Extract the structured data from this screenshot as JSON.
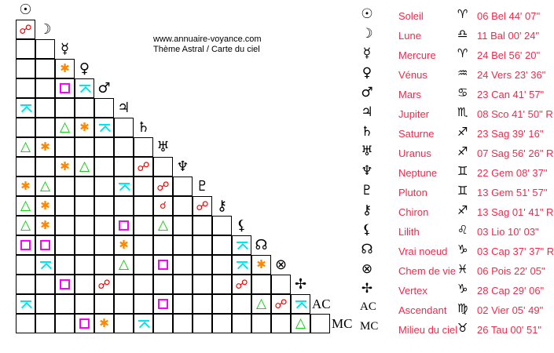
{
  "header": {
    "site": "www.annuaire-voyance.com",
    "subtitle": "Thème Astral / Carte du ciel"
  },
  "colors": {
    "opposition": "#ff0000",
    "conjunction": "#ff0000",
    "sextile": "#ff8800",
    "square": "#ff00ff",
    "quincunx": "#00e5ee",
    "trine": "#00cc00",
    "text": "#ee2a4a"
  },
  "aspect_glyphs": {
    "opposition": "☍",
    "conjunction": "☌",
    "sextile": "✱",
    "trine": "△"
  },
  "bodies": [
    {
      "glyph": "☉",
      "name": "Soleil",
      "sign": "♈",
      "position": "06 Bel 44' 07\""
    },
    {
      "glyph": "☽",
      "name": "Lune",
      "sign": "♎",
      "position": "11 Bal 00' 24\""
    },
    {
      "glyph": "☿",
      "name": "Mercure",
      "sign": "♈",
      "position": "24 Bel 56' 20\""
    },
    {
      "glyph": "♀",
      "name": "Vénus",
      "sign": "♒",
      "position": "24 Vers 23' 36\""
    },
    {
      "glyph": "♂",
      "name": "Mars",
      "sign": "♋",
      "position": "23 Can 41' 57\""
    },
    {
      "glyph": "♃",
      "name": "Jupiter",
      "sign": "♏",
      "position": "08 Sco 41' 50\" R"
    },
    {
      "glyph": "♄",
      "name": "Saturne",
      "sign": "♐",
      "position": "23 Sag 39' 16\""
    },
    {
      "glyph": "♅",
      "name": "Uranus",
      "sign": "♐",
      "position": "07 Sag 56' 26\" R"
    },
    {
      "glyph": "♆",
      "name": "Neptune",
      "sign": "♊",
      "position": "22 Gem 08' 37\""
    },
    {
      "glyph": "♇",
      "name": "Pluton",
      "sign": "♊",
      "position": "13 Gem 51' 57\""
    },
    {
      "glyph": "⚷",
      "name": "Chiron",
      "sign": "♐",
      "position": "13 Sag 01' 41\" R"
    },
    {
      "glyph": "⚸",
      "name": "Lilith",
      "sign": "♌",
      "position": "03 Lio 10' 03\""
    },
    {
      "glyph": "☊",
      "name": "Vrai noeud",
      "sign": "♑",
      "position": "03 Cap 37' 37\" R"
    },
    {
      "glyph": "⊗",
      "name": "Chem de vie",
      "sign": "♓",
      "position": "06 Pois 22' 05\""
    },
    {
      "glyph": "✢",
      "name": "Vertex",
      "sign": "♑",
      "position": "28 Cap 29' 06\""
    },
    {
      "glyph": "AC",
      "name": "Ascendant",
      "sign": "♍",
      "position": "02 Vier 05' 49\""
    },
    {
      "glyph": "MC",
      "name": "Milieu du ciel",
      "sign": "♉",
      "position": "26 Tau 00' 51\""
    }
  ],
  "aspects": [
    {
      "a": "Lune",
      "b": "Soleil",
      "type": "opposition"
    },
    {
      "a": "Vénus",
      "b": "Mercure",
      "type": "sextile"
    },
    {
      "a": "Mars",
      "b": "Mercure",
      "type": "square"
    },
    {
      "a": "Mars",
      "b": "Vénus",
      "type": "quincunx"
    },
    {
      "a": "Jupiter",
      "b": "Soleil",
      "type": "quincunx"
    },
    {
      "a": "Saturne",
      "b": "Mercure",
      "type": "trine"
    },
    {
      "a": "Saturne",
      "b": "Vénus",
      "type": "sextile"
    },
    {
      "a": "Saturne",
      "b": "Mars",
      "type": "quincunx"
    },
    {
      "a": "Uranus",
      "b": "Soleil",
      "type": "trine"
    },
    {
      "a": "Uranus",
      "b": "Lune",
      "type": "sextile"
    },
    {
      "a": "Neptune",
      "b": "Mercure",
      "type": "sextile"
    },
    {
      "a": "Neptune",
      "b": "Vénus",
      "type": "trine"
    },
    {
      "a": "Neptune",
      "b": "Saturne",
      "type": "opposition"
    },
    {
      "a": "Pluton",
      "b": "Soleil",
      "type": "sextile"
    },
    {
      "a": "Pluton",
      "b": "Lune",
      "type": "trine"
    },
    {
      "a": "Pluton",
      "b": "Jupiter",
      "type": "quincunx"
    },
    {
      "a": "Pluton",
      "b": "Uranus",
      "type": "opposition"
    },
    {
      "a": "Chiron",
      "b": "Soleil",
      "type": "trine"
    },
    {
      "a": "Chiron",
      "b": "Lune",
      "type": "sextile"
    },
    {
      "a": "Chiron",
      "b": "Uranus",
      "type": "conjunction"
    },
    {
      "a": "Chiron",
      "b": "Pluton",
      "type": "opposition"
    },
    {
      "a": "Lilith",
      "b": "Soleil",
      "type": "trine"
    },
    {
      "a": "Lilith",
      "b": "Lune",
      "type": "sextile"
    },
    {
      "a": "Lilith",
      "b": "Jupiter",
      "type": "square"
    },
    {
      "a": "Lilith",
      "b": "Uranus",
      "type": "trine"
    },
    {
      "a": "Vrai noeud",
      "b": "Soleil",
      "type": "square"
    },
    {
      "a": "Vrai noeud",
      "b": "Lune",
      "type": "square"
    },
    {
      "a": "Vrai noeud",
      "b": "Jupiter",
      "type": "sextile"
    },
    {
      "a": "Vrai noeud",
      "b": "Lilith",
      "type": "quincunx"
    },
    {
      "a": "Chem de vie",
      "b": "Lune",
      "type": "quincunx"
    },
    {
      "a": "Chem de vie",
      "b": "Jupiter",
      "type": "trine"
    },
    {
      "a": "Chem de vie",
      "b": "Uranus",
      "type": "square"
    },
    {
      "a": "Chem de vie",
      "b": "Lilith",
      "type": "quincunx"
    },
    {
      "a": "Chem de vie",
      "b": "Vrai noeud",
      "type": "sextile"
    },
    {
      "a": "Vertex",
      "b": "Mercure",
      "type": "square"
    },
    {
      "a": "Vertex",
      "b": "Mars",
      "type": "opposition"
    },
    {
      "a": "Vertex",
      "b": "Lilith",
      "type": "opposition"
    },
    {
      "a": "Ascendant",
      "b": "Soleil",
      "type": "quincunx"
    },
    {
      "a": "Ascendant",
      "b": "Uranus",
      "type": "square"
    },
    {
      "a": "Ascendant",
      "b": "Vrai noeud",
      "type": "trine"
    },
    {
      "a": "Ascendant",
      "b": "Chem de vie",
      "type": "opposition"
    },
    {
      "a": "Ascendant",
      "b": "Vertex",
      "type": "quincunx"
    },
    {
      "a": "Milieu du ciel",
      "b": "Vénus",
      "type": "square"
    },
    {
      "a": "Milieu du ciel",
      "b": "Mars",
      "type": "sextile"
    },
    {
      "a": "Milieu du ciel",
      "b": "Saturne",
      "type": "quincunx"
    },
    {
      "a": "Milieu du ciel",
      "b": "Vertex",
      "type": "trine"
    }
  ]
}
